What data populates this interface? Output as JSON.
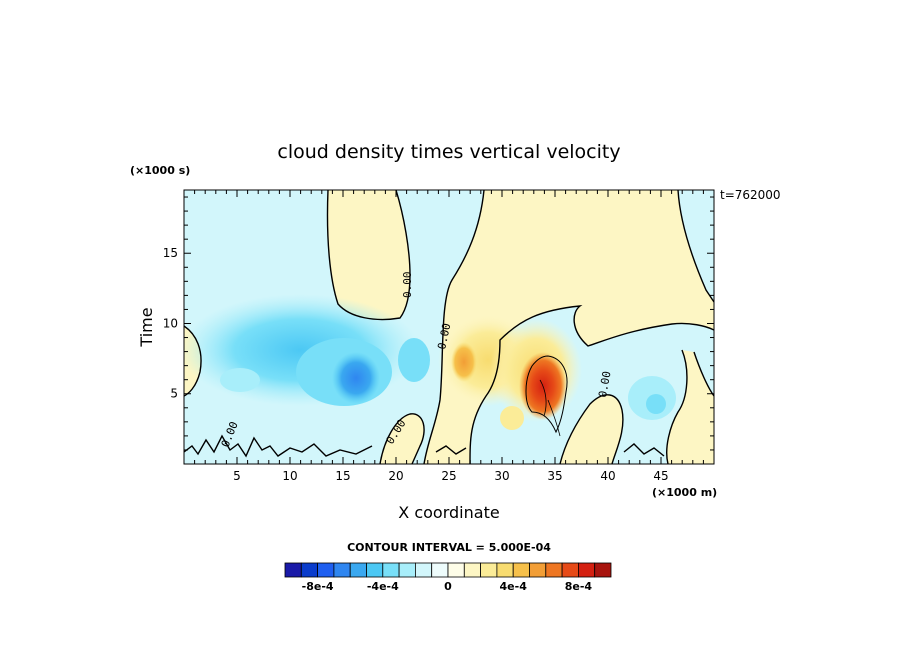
{
  "chart_data": {
    "type": "heatmap",
    "title": "cloud density times vertical velocity",
    "xlabel": "X coordinate",
    "ylabel": "Time",
    "x_unit_label": "(×1000 m)",
    "y_unit_label": "(×1000 s)",
    "time_stamp": "t=762000",
    "xlim": [
      0,
      50
    ],
    "ylim": [
      0,
      19.5
    ],
    "x_ticks": [
      5,
      10,
      15,
      20,
      25,
      30,
      35,
      40,
      45
    ],
    "y_ticks": [
      5,
      10,
      15
    ],
    "zero_contour_labels": [
      "0.00",
      "0.00",
      "0.00",
      "0.00",
      "0.00"
    ],
    "contour_interval_text": "CONTOUR INTERVAL = 5.000E-04",
    "features": [
      {
        "sign": "negative",
        "x": 16,
        "y": 6.0,
        "value": -0.0006
      },
      {
        "sign": "negative",
        "x": 21.5,
        "y": 7.0,
        "value": -0.0003
      },
      {
        "sign": "positive",
        "x": 26,
        "y": 7.5,
        "value": 0.0004
      },
      {
        "sign": "positive",
        "x": 33.5,
        "y": 5.5,
        "value": 0.00085
      },
      {
        "sign": "negative",
        "x": 44,
        "y": 4.5,
        "value": -0.0002
      }
    ],
    "colorbar": {
      "colors": [
        "#1a1aa8",
        "#0a3ccc",
        "#1f5ff0",
        "#2f86f0",
        "#3aa8f0",
        "#4cc8f4",
        "#78dff8",
        "#a8eefa",
        "#d2f6fb",
        "#eefcfc",
        "#fefde8",
        "#fdf6c4",
        "#fbec98",
        "#f8dc70",
        "#f6c04a",
        "#f29e36",
        "#ee7622",
        "#e64a17",
        "#d42011",
        "#a8140e"
      ],
      "tick_labels": [
        "-8e-4",
        "-4e-4",
        "0",
        "4e-4",
        "8e-4"
      ]
    }
  }
}
